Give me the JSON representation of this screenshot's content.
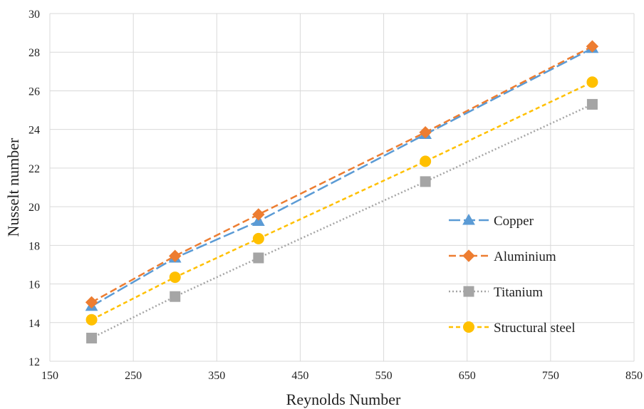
{
  "chart_data": {
    "type": "line",
    "title": "",
    "xlabel": "Reynolds Number",
    "ylabel": "Nusselt number",
    "xlim": [
      150,
      850
    ],
    "ylim": [
      12,
      30
    ],
    "xticks": [
      150,
      250,
      350,
      450,
      550,
      650,
      750,
      850
    ],
    "yticks": [
      12,
      14,
      16,
      18,
      20,
      22,
      24,
      26,
      28,
      30
    ],
    "grid": true,
    "legend_position": "right",
    "x": [
      200,
      300,
      400,
      600,
      800
    ],
    "series": [
      {
        "name": "Copper",
        "values": [
          14.85,
          17.35,
          19.25,
          23.75,
          28.2
        ],
        "color": "#5b9bd5",
        "marker": "triangle",
        "dash": "long-dash"
      },
      {
        "name": "Aluminium",
        "values": [
          15.05,
          17.45,
          19.6,
          23.85,
          28.3
        ],
        "color": "#ed7d31",
        "marker": "diamond",
        "dash": "dash"
      },
      {
        "name": "Titanium",
        "values": [
          13.2,
          15.35,
          17.35,
          21.3,
          25.3
        ],
        "color": "#a5a5a5",
        "marker": "square",
        "dash": "dot"
      },
      {
        "name": "Structural steel",
        "values": [
          14.15,
          16.35,
          18.35,
          22.35,
          26.45
        ],
        "color": "#ffc000",
        "marker": "circle",
        "dash": "short-dash"
      }
    ]
  }
}
